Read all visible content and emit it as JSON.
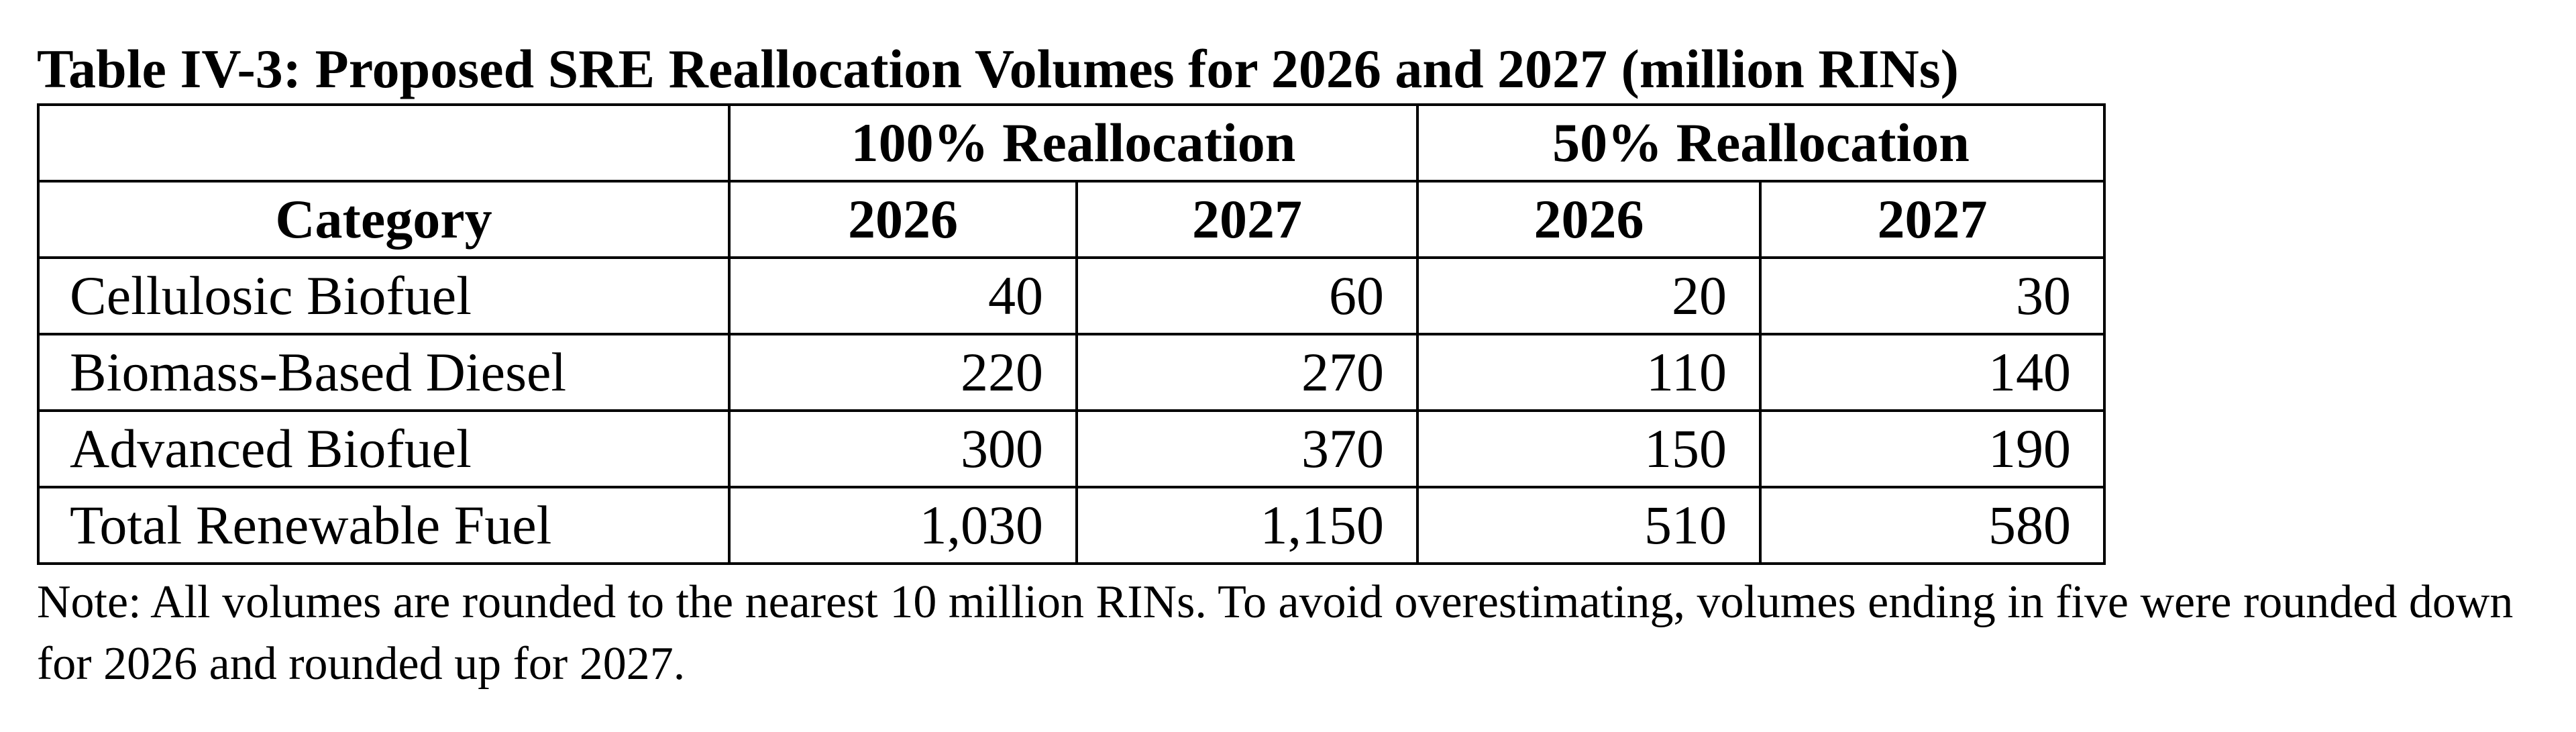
{
  "title": "Table IV-3: Proposed SRE Reallocation Volumes for 2026 and 2027 (million RINs)",
  "group_headers": [
    "100% Reallocation",
    "50% Reallocation"
  ],
  "column_headers": [
    "Category",
    "2026",
    "2027",
    "2026",
    "2027"
  ],
  "rows": [
    {
      "category": "Cellulosic Biofuel",
      "values": [
        "40",
        "60",
        "20",
        "30"
      ]
    },
    {
      "category": "Biomass-Based Diesel",
      "values": [
        "220",
        "270",
        "110",
        "140"
      ]
    },
    {
      "category": "Advanced Biofuel",
      "values": [
        "300",
        "370",
        "150",
        "190"
      ]
    },
    {
      "category": "Total Renewable Fuel",
      "values": [
        "1,030",
        "1,150",
        "510",
        "580"
      ]
    }
  ],
  "note": "Note: All volumes are rounded to the nearest 10 million RINs. To avoid overestimating, volumes ending in five were rounded down for 2026 and rounded up for 2027."
}
